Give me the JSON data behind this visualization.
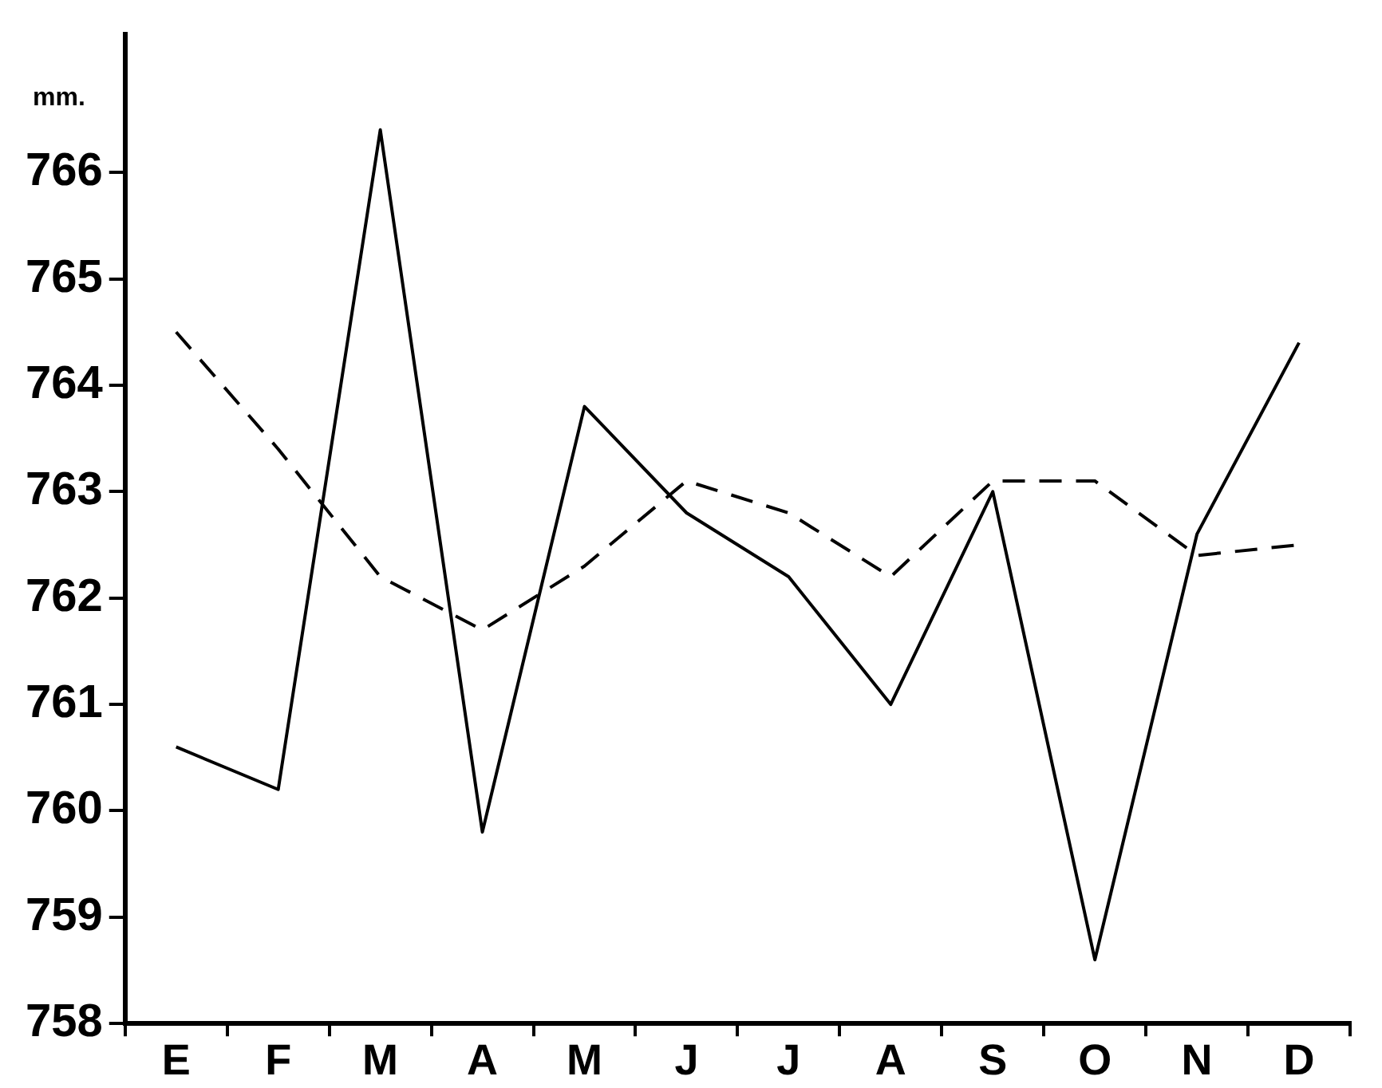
{
  "chart_data": {
    "type": "line",
    "ylabel": "mm.",
    "categories": [
      "E",
      "F",
      "M",
      "A",
      "M",
      "J",
      "J",
      "A",
      "S",
      "O",
      "N",
      "D"
    ],
    "series": [
      {
        "color": "#000000",
        "line_style": "solid",
        "values": [
          760.6,
          760.2,
          766.4,
          759.8,
          763.8,
          762.8,
          762.2,
          761.0,
          763.0,
          758.6,
          762.6,
          764.4
        ]
      },
      {
        "color": "#000000",
        "line_style": "dashed",
        "values": [
          764.5,
          763.4,
          762.2,
          761.7,
          762.3,
          763.1,
          762.8,
          762.2,
          763.1,
          763.1,
          762.4,
          762.5
        ]
      }
    ],
    "ylim": [
      758,
      767.3
    ],
    "yticks": [
      758,
      759,
      760,
      761,
      762,
      763,
      764,
      765,
      766
    ],
    "grid": false,
    "legend": false,
    "marker": "none"
  }
}
